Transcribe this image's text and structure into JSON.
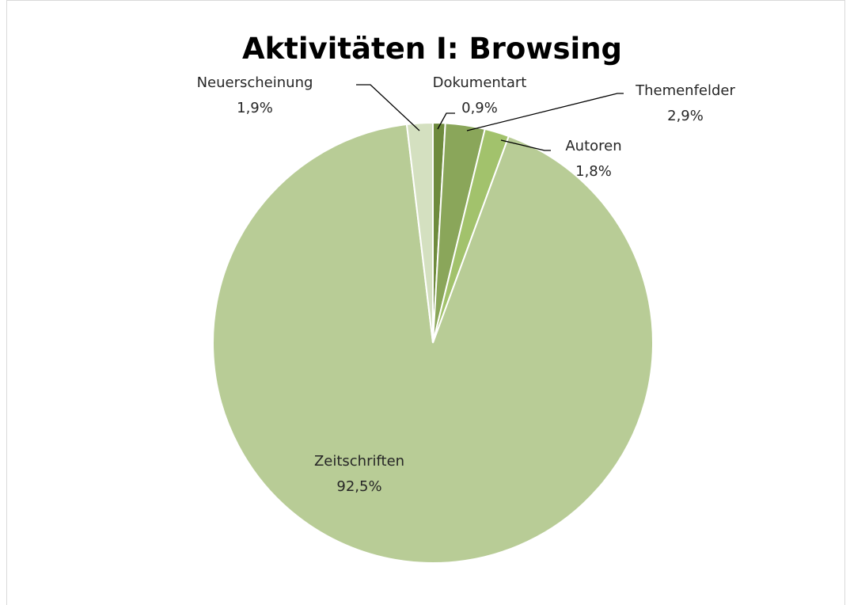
{
  "chart_data": {
    "type": "pie",
    "title": "Aktivitäten I: Browsing",
    "slices": [
      {
        "name": "Dokumentart",
        "value": 0.9,
        "label": "0,9%",
        "color": "#6e8b3d"
      },
      {
        "name": "Themenfelder",
        "value": 2.9,
        "label": "2,9%",
        "color": "#8aa65a"
      },
      {
        "name": "Autoren",
        "value": 1.8,
        "label": "1,8%",
        "color": "#a2c26c"
      },
      {
        "name": "Zeitschriften",
        "value": 92.5,
        "label": "92,5%",
        "color": "#b8cc96"
      },
      {
        "name": "Neuerscheinung",
        "value": 1.9,
        "label": "1,9%",
        "color": "#d4e0c0"
      }
    ],
    "start_angle_deg": 0,
    "direction": "clockwise",
    "legend": "none"
  }
}
